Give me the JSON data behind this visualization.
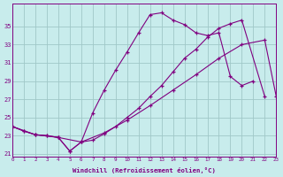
{
  "xlabel": "Windchill (Refroidissement éolien,°C)",
  "background_color": "#c8ecec",
  "grid_color": "#a0c8c8",
  "line_color": "#800080",
  "xmin": 0,
  "xmax": 23,
  "ymin": 21,
  "ymax": 37,
  "yticks": [
    21,
    23,
    25,
    27,
    29,
    31,
    33,
    35
  ],
  "line1_x": [
    0,
    1,
    2,
    3,
    4,
    5,
    6,
    7,
    8,
    9,
    10,
    11,
    12,
    13,
    14,
    15,
    16,
    17,
    18,
    19,
    20,
    21
  ],
  "line1_y": [
    24.0,
    23.5,
    23.1,
    23.0,
    22.8,
    21.3,
    22.3,
    25.5,
    28.0,
    30.2,
    32.2,
    34.3,
    36.3,
    36.5,
    35.7,
    35.2,
    34.3,
    34.0,
    34.3,
    29.5,
    28.5,
    29.0
  ],
  "line2_x": [
    0,
    1,
    2,
    3,
    4,
    5,
    6,
    7,
    8,
    9,
    10,
    11,
    12,
    13,
    14,
    15,
    16,
    17,
    18,
    19,
    20,
    22
  ],
  "line2_y": [
    24.0,
    23.5,
    23.1,
    23.0,
    22.8,
    21.3,
    22.3,
    22.5,
    23.2,
    24.0,
    25.0,
    26.0,
    27.3,
    28.5,
    30.0,
    31.5,
    32.5,
    33.8,
    34.8,
    35.3,
    35.7,
    27.3
  ],
  "line3_x": [
    0,
    2,
    4,
    6,
    8,
    10,
    12,
    14,
    16,
    18,
    20,
    22,
    23
  ],
  "line3_y": [
    24.0,
    23.1,
    22.8,
    22.3,
    23.3,
    24.7,
    26.3,
    28.0,
    29.7,
    31.5,
    33.0,
    33.5,
    27.3
  ]
}
